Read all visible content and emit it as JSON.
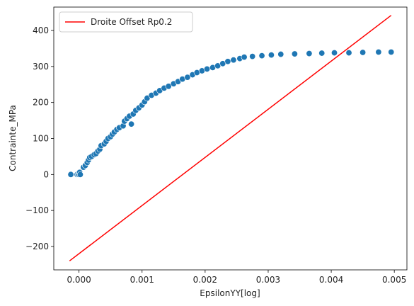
{
  "chart_data": {
    "type": "scatter",
    "xlabel": "EpsilonYY[log]",
    "ylabel": "Contrainte_MPa",
    "xlim": [
      -0.0004,
      0.0052
    ],
    "ylim": [
      -265,
      465
    ],
    "x_ticks": [
      0.0,
      0.001,
      0.002,
      0.003,
      0.004,
      0.005
    ],
    "x_tick_labels": [
      "0.000",
      "0.001",
      "0.002",
      "0.003",
      "0.004",
      "0.005"
    ],
    "y_ticks": [
      -200,
      -100,
      0,
      100,
      200,
      300,
      400
    ],
    "y_tick_labels": [
      "−200",
      "−100",
      "0",
      "100",
      "200",
      "300",
      "400"
    ],
    "grid": false,
    "legend_position": "top-left",
    "legend": [
      {
        "label": "Droite Offset Rp0.2",
        "color": "#ff0000"
      }
    ],
    "series": [
      {
        "kind": "scatter",
        "color": "#1f77b4",
        "points": [
          [
            -0.00013,
            0
          ],
          [
            -3e-05,
            0
          ],
          [
            -1e-05,
            0
          ],
          [
            0.0,
            0
          ],
          [
            1e-05,
            6
          ],
          [
            2e-05,
            0
          ],
          [
            7e-05,
            20
          ],
          [
            0.0001,
            25
          ],
          [
            0.00013,
            33
          ],
          [
            0.00015,
            40
          ],
          [
            0.00017,
            47
          ],
          [
            0.0002,
            50
          ],
          [
            0.00024,
            55
          ],
          [
            0.00027,
            58
          ],
          [
            0.0003,
            65
          ],
          [
            0.00033,
            70
          ],
          [
            0.00035,
            80
          ],
          [
            0.0004,
            85
          ],
          [
            0.00043,
            92
          ],
          [
            0.00046,
            100
          ],
          [
            0.0005,
            105
          ],
          [
            0.00053,
            112
          ],
          [
            0.00056,
            118
          ],
          [
            0.0006,
            125
          ],
          [
            0.00064,
            130
          ],
          [
            0.0007,
            135
          ],
          [
            0.00072,
            148
          ],
          [
            0.00076,
            155
          ],
          [
            0.0008,
            162
          ],
          [
            0.00083,
            140
          ],
          [
            0.00086,
            168
          ],
          [
            0.0009,
            178
          ],
          [
            0.00095,
            185
          ],
          [
            0.001,
            193
          ],
          [
            0.00104,
            202
          ],
          [
            0.00108,
            212
          ],
          [
            0.00115,
            220
          ],
          [
            0.00122,
            226
          ],
          [
            0.00128,
            233
          ],
          [
            0.00135,
            240
          ],
          [
            0.00142,
            245
          ],
          [
            0.0015,
            252
          ],
          [
            0.00157,
            258
          ],
          [
            0.00164,
            265
          ],
          [
            0.00172,
            270
          ],
          [
            0.0018,
            277
          ],
          [
            0.00187,
            283
          ],
          [
            0.00195,
            288
          ],
          [
            0.00203,
            293
          ],
          [
            0.00212,
            297
          ],
          [
            0.0022,
            302
          ],
          [
            0.00228,
            308
          ],
          [
            0.00236,
            314
          ],
          [
            0.00245,
            318
          ],
          [
            0.00255,
            322
          ],
          [
            0.00262,
            326
          ],
          [
            0.00275,
            328
          ],
          [
            0.0029,
            330
          ],
          [
            0.00305,
            332
          ],
          [
            0.0032,
            334
          ],
          [
            0.00342,
            335
          ],
          [
            0.00365,
            336
          ],
          [
            0.00385,
            337
          ],
          [
            0.00405,
            338
          ],
          [
            0.00428,
            338
          ],
          [
            0.0045,
            339
          ],
          [
            0.00475,
            340
          ],
          [
            0.00495,
            340
          ]
        ]
      },
      {
        "kind": "line",
        "name": "Droite Offset Rp0.2",
        "color": "#ff0000",
        "x": [
          -0.00015,
          0.00495
        ],
        "y": [
          -240,
          442
        ]
      }
    ]
  }
}
